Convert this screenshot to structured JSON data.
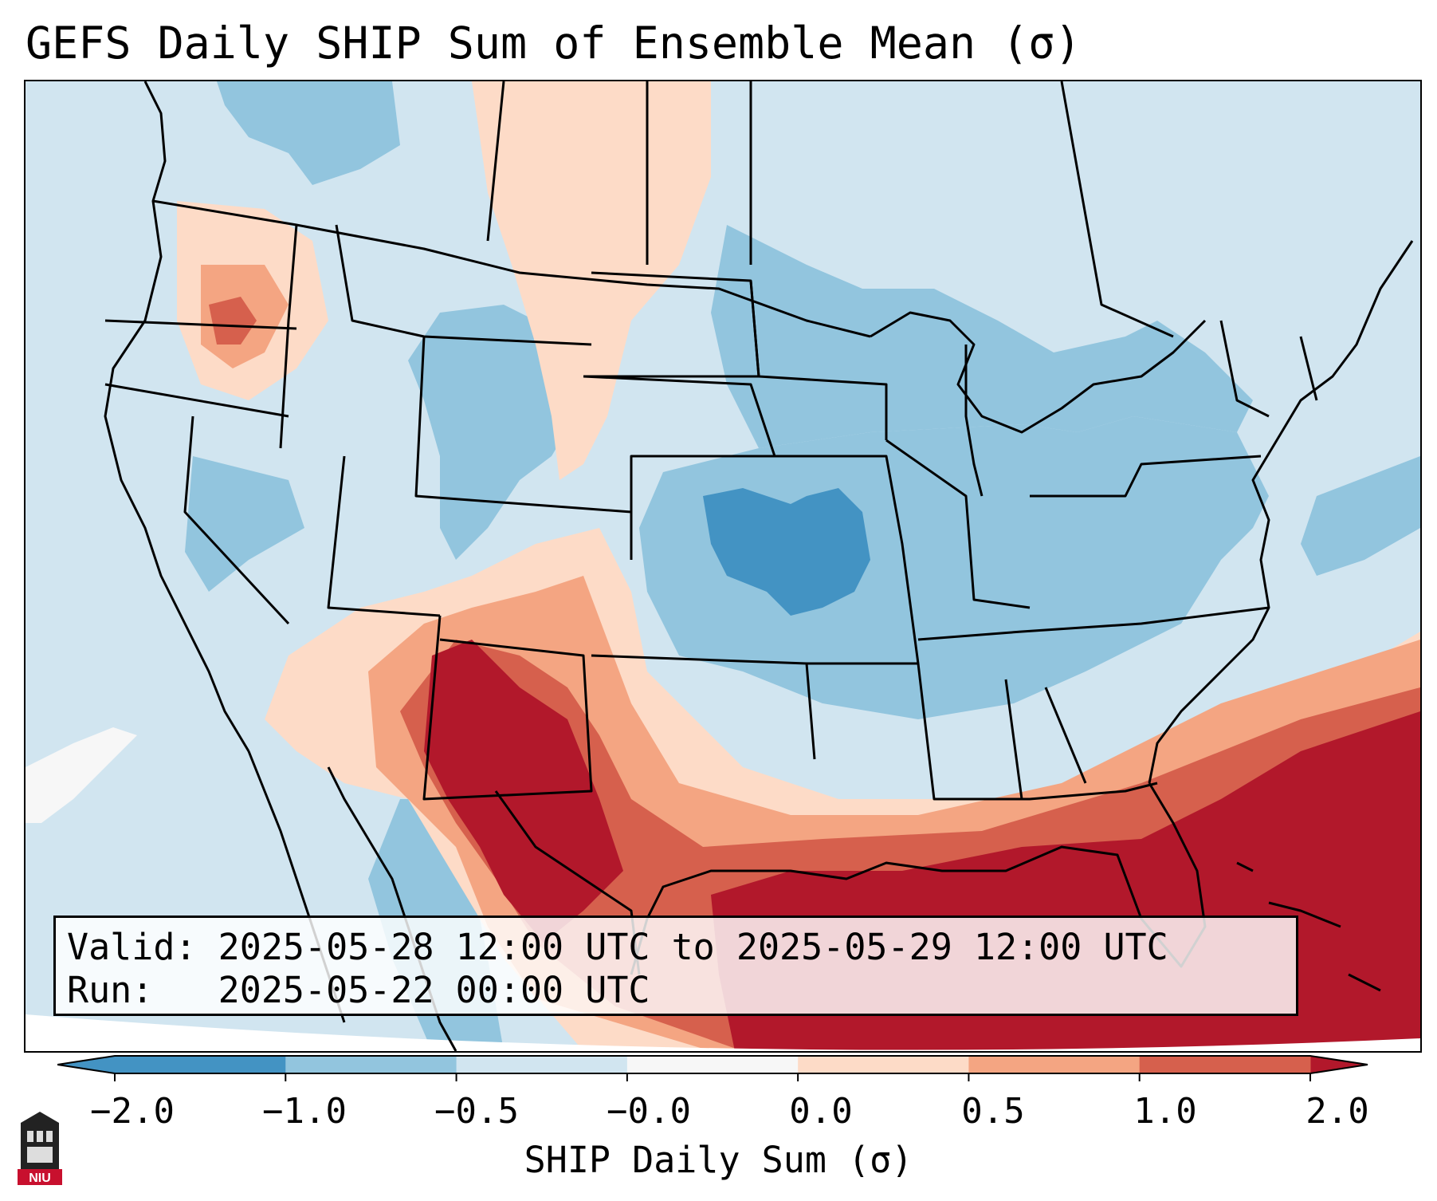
{
  "title": "GEFS Daily SHIP Sum of Ensemble Mean (σ)",
  "info": {
    "valid_label": "Valid:",
    "valid_value": "2025-05-28 12:00 UTC to 2025-05-29 12:00 UTC",
    "run_label": "Run:",
    "run_value": "2025-05-22 00:00 UTC"
  },
  "colorbar": {
    "ticks": [
      "−2.0",
      "−1.0",
      "−0.5",
      "−0.0",
      "0.0",
      "0.5",
      "1.0",
      "2.0"
    ],
    "label": "SHIP Daily Sum (σ)",
    "colors": [
      "#4393c3",
      "#92c5de",
      "#d1e5f0",
      "#f7f7f7",
      "#fddbc7",
      "#f4a582",
      "#d6604d",
      "#b2182b"
    ]
  },
  "logo": {
    "text": "NIU"
  }
}
